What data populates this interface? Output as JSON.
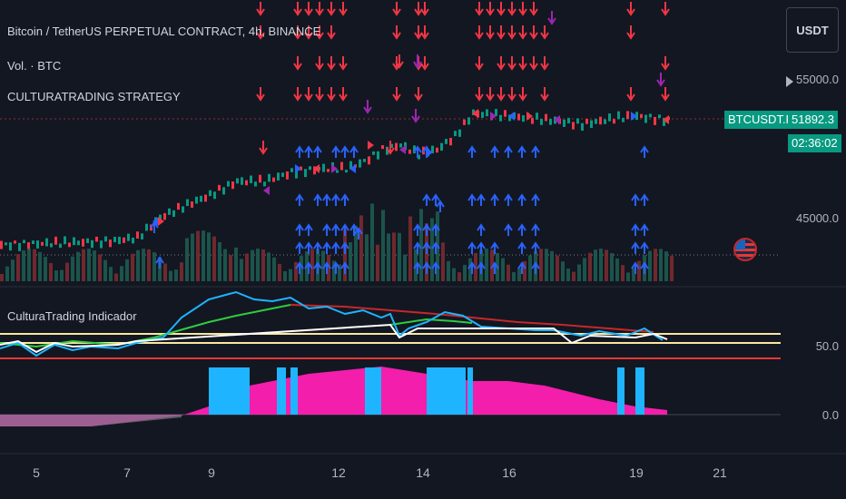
{
  "chart": {
    "symbol_title": "Bitcoin / TetherUS PERPETUAL CONTRACT, 4h, BINANCE",
    "volume_legend": "Vol. · BTC",
    "strategy_legend": "CULTURATRADING STRATEGY",
    "indicator_legend": "CulturaTrading Indicador",
    "currency_button": "USDT",
    "symbol_tag": "BTCUSDT.P",
    "last_price": "51892.3",
    "countdown": "02:36:02",
    "price_axis_labels": [
      "55000.0",
      "45000.0"
    ],
    "indicator_axis_labels": [
      "50.0",
      "0.0"
    ],
    "x_labels": [
      "5",
      "7",
      "9",
      "12",
      "14",
      "16",
      "19",
      "21"
    ],
    "colors": {
      "background": "#131722",
      "up_candle": "#089981",
      "down_candle": "#f23645",
      "buy_arrow": "#2962ff",
      "sell_arrow": "#f23645",
      "exit_arrow": "#9c27b0",
      "hist_positive": "#ff1fb4",
      "hist_cyan": "#1fb4ff",
      "yellow_level": "#f9e79f",
      "red_level": "#e53935"
    }
  }
}
